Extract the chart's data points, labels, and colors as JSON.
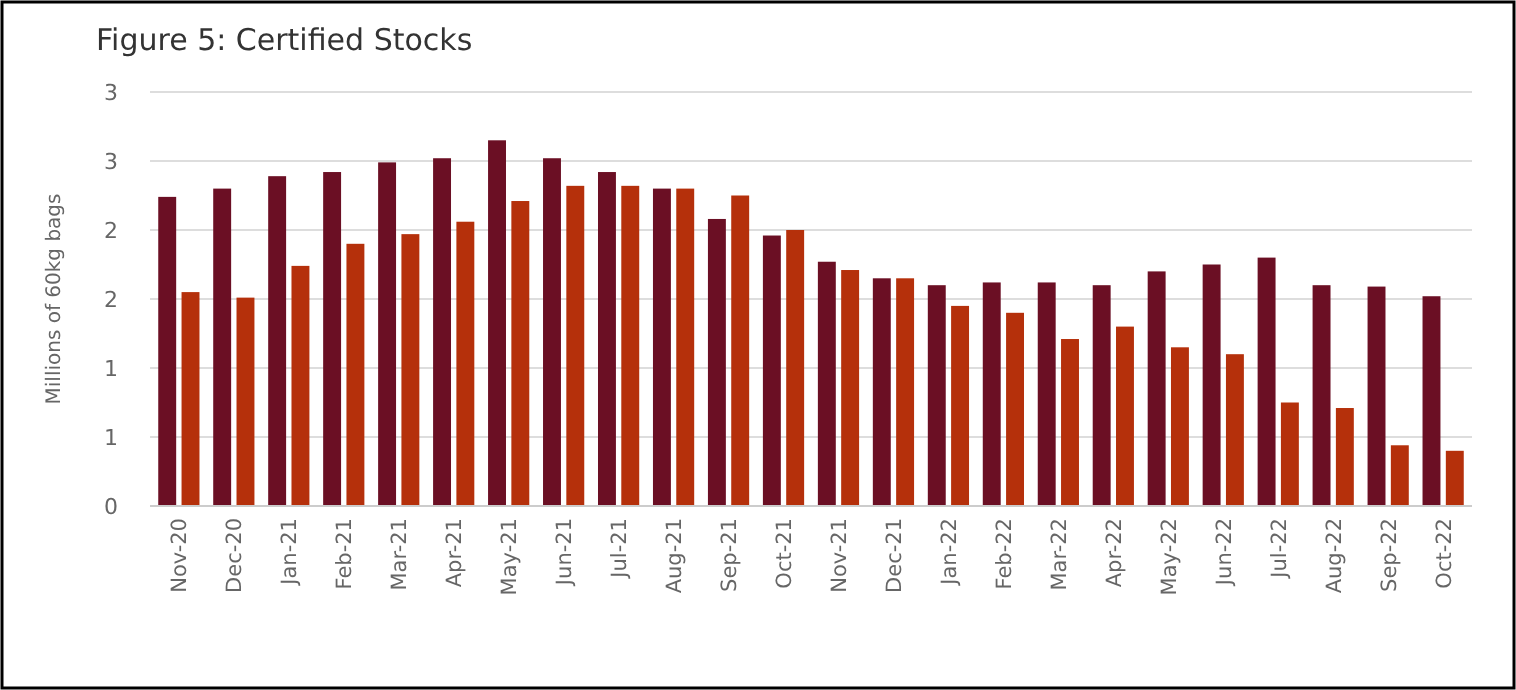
{
  "chart_data": {
    "type": "bar",
    "title": "Figure 5: Certified Stocks",
    "ylabel": "Millions of 60kg bags",
    "categories": [
      "Nov-20",
      "Dec-20",
      "Jan-21",
      "Feb-21",
      "Mar-21",
      "Apr-21",
      "May-21",
      "Jun-21",
      "Jul-21",
      "Aug-21",
      "Sep-21",
      "Oct-21",
      "Nov-21",
      "Dec-21",
      "Jan-22",
      "Feb-22",
      "Mar-22",
      "Apr-22",
      "May-22",
      "Jun-22",
      "Jul-22",
      "Aug-22",
      "Sep-22",
      "Oct-22"
    ],
    "series": [
      {
        "color": "#6b0f24",
        "values": [
          2.24,
          2.3,
          2.39,
          2.42,
          2.49,
          2.52,
          2.65,
          2.52,
          2.42,
          2.3,
          2.08,
          1.96,
          1.77,
          1.65,
          1.6,
          1.62,
          1.62,
          1.6,
          1.7,
          1.75,
          1.8,
          1.6,
          1.59,
          1.52
        ]
      },
      {
        "color": "#b5300b",
        "values": [
          1.55,
          1.51,
          1.74,
          1.9,
          1.97,
          2.06,
          2.21,
          2.32,
          2.32,
          2.3,
          2.25,
          2.0,
          1.71,
          1.65,
          1.45,
          1.4,
          1.21,
          1.3,
          1.15,
          1.1,
          0.75,
          0.71,
          0.44,
          0.4
        ]
      }
    ],
    "ylim": [
      0,
      3
    ],
    "yticks": [
      0,
      {
        "value": 0.5,
        "label": "1"
      },
      1,
      {
        "value": 1.5,
        "label": "2"
      },
      2,
      {
        "value": 2.5,
        "label": "3"
      },
      3
    ],
    "grid": "y"
  }
}
